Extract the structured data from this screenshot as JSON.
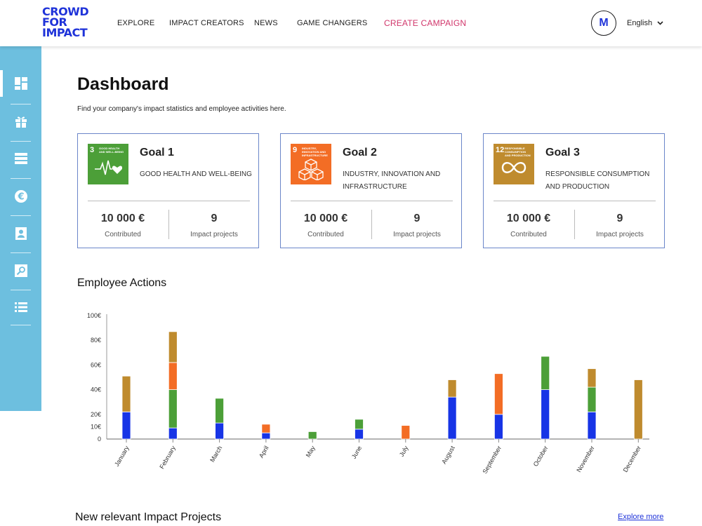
{
  "brand": {
    "logo_lines": [
      "CROWD",
      "FOR",
      "IMPACT"
    ],
    "color": "#1f33d9"
  },
  "nav": {
    "items": [
      "EXPLORE",
      "IMPACT CREATORS",
      "NEWS",
      "GAME CHANGERS"
    ],
    "cta": "CREATE CAMPAIGN",
    "cta_color": "#d1366b"
  },
  "user": {
    "avatar_initial": "M",
    "language": "English"
  },
  "sidebar": {
    "color": "#6dbfdf",
    "items": [
      "dashboard-icon",
      "gift-icon",
      "list-icon",
      "euro-icon",
      "profile-icon",
      "search-icon",
      "bullets-icon"
    ],
    "active": "dashboard-icon"
  },
  "page": {
    "title": "Dashboard",
    "subtitle": "Find your company's impact statistics and employee activities here."
  },
  "goals": [
    {
      "sdg_number": "3",
      "sdg_label": "GOOD HEALTH AND WELL-BEING",
      "sdg_color": "#4c9f38",
      "sdg_icon": "heartbeat-icon",
      "title": "Goal 1",
      "description": "GOOD HEALTH AND WELL-BEING",
      "contributed_value": "10 000 €",
      "contributed_label": "Contributed",
      "projects_value": "9",
      "projects_label": "Impact projects"
    },
    {
      "sdg_number": "9",
      "sdg_label": "INDUSTRY, INNOVATION AND INFRASTRUCTURE",
      "sdg_color": "#f36d25",
      "sdg_icon": "cubes-icon",
      "title": "Goal 2",
      "description": "INDUSTRY, INNOVATION AND INFRASTRUCTURE",
      "contributed_value": "10 000 €",
      "contributed_label": "Contributed",
      "projects_value": "9",
      "projects_label": "Impact projects"
    },
    {
      "sdg_number": "12",
      "sdg_label": "RESPONSIBLE CONSUMPTION AND PRODUCTION",
      "sdg_color": "#bf8b2e",
      "sdg_icon": "infinity-icon",
      "title": "Goal 3",
      "description": "RESPONSIBLE CONSUMPTION AND PRODUCTION",
      "contributed_value": "10 000 €",
      "contributed_label": "Contributed",
      "projects_value": "9",
      "projects_label": "Impact projects"
    }
  ],
  "employee_actions": {
    "title": "Employee Actions"
  },
  "chart_data": {
    "type": "bar",
    "stacked": true,
    "categories": [
      "January",
      "February",
      "March",
      "April",
      "May",
      "June",
      "July",
      "August",
      "September",
      "October",
      "November",
      "December"
    ],
    "y_ticks": [
      "0",
      "10€",
      "20€",
      "40€",
      "60€",
      "80€",
      "100€"
    ],
    "series": [
      {
        "color": "#1734e6",
        "values": [
          22,
          9,
          13,
          5,
          0,
          8,
          0,
          34,
          20,
          40,
          22,
          0
        ]
      },
      {
        "color": "#4c9f38",
        "values": [
          0,
          31,
          20,
          0,
          6,
          8,
          0,
          0,
          0,
          27,
          20,
          0
        ]
      },
      {
        "color": "#f36d25",
        "values": [
          0,
          22,
          0,
          7,
          0,
          0,
          11,
          0,
          33,
          0,
          0,
          0
        ]
      },
      {
        "color": "#bf8b2e",
        "values": [
          29,
          25,
          0,
          0,
          0,
          0,
          0,
          14,
          0,
          0,
          15,
          48
        ]
      }
    ],
    "grid": false
  },
  "projects": {
    "title": "New relevant Impact Projects",
    "explore_label": "Explore more"
  }
}
